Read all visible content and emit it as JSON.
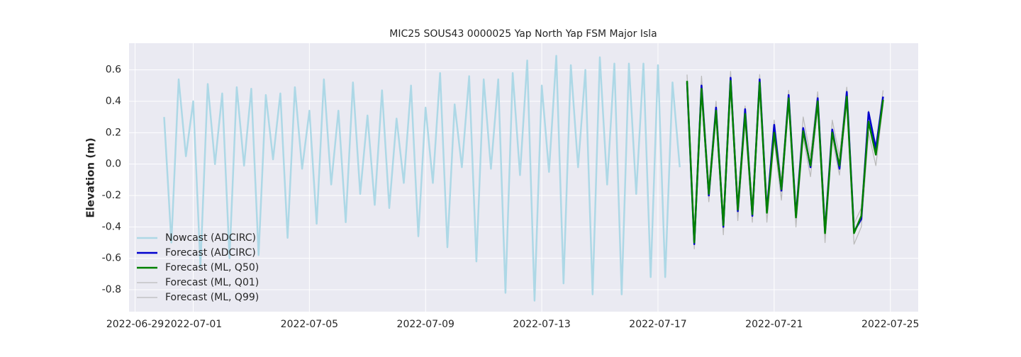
{
  "chart_data": {
    "type": "line",
    "title": "MIC25 SOUS43 0000025 Yap North Yap FSM Major Isla",
    "ylabel": "Elevation (m)",
    "xlim": [
      "2022-06-28 19:00",
      "2022-07-25 23:00"
    ],
    "xticks": [
      "2022-06-29",
      "2022-07-01",
      "2022-07-05",
      "2022-07-09",
      "2022-07-13",
      "2022-07-17",
      "2022-07-21",
      "2022-07-25"
    ],
    "ylim": [
      -0.94,
      0.77
    ],
    "yticks": [
      -0.8,
      -0.6,
      -0.4,
      -0.2,
      {
        "value": 0,
        "label": "0.0"
      },
      0.2,
      0.4,
      0.6
    ],
    "grid": true,
    "legend": "lower left",
    "series": [
      {
        "name": "Nowcast (ADCIRC)",
        "color": "#add8e6",
        "x": [
          "2022-06-30 00:00",
          "2022-06-30 06:00",
          "2022-06-30 12:00",
          "2022-06-30 18:00",
          "2022-07-01 00:00",
          "2022-07-01 06:00",
          "2022-07-01 12:00",
          "2022-07-01 18:00",
          "2022-07-02 00:00",
          "2022-07-02 06:00",
          "2022-07-02 12:00",
          "2022-07-02 18:00",
          "2022-07-03 00:00",
          "2022-07-03 06:00",
          "2022-07-03 12:00",
          "2022-07-03 18:00",
          "2022-07-04 00:00",
          "2022-07-04 06:00",
          "2022-07-04 12:00",
          "2022-07-04 18:00",
          "2022-07-05 00:00",
          "2022-07-05 06:00",
          "2022-07-05 12:00",
          "2022-07-05 18:00",
          "2022-07-06 00:00",
          "2022-07-06 06:00",
          "2022-07-06 12:00",
          "2022-07-06 18:00",
          "2022-07-07 00:00",
          "2022-07-07 06:00",
          "2022-07-07 12:00",
          "2022-07-07 18:00",
          "2022-07-08 00:00",
          "2022-07-08 06:00",
          "2022-07-08 12:00",
          "2022-07-08 18:00",
          "2022-07-09 00:00",
          "2022-07-09 06:00",
          "2022-07-09 12:00",
          "2022-07-09 18:00",
          "2022-07-10 00:00",
          "2022-07-10 06:00",
          "2022-07-10 12:00",
          "2022-07-10 18:00",
          "2022-07-11 00:00",
          "2022-07-11 06:00",
          "2022-07-11 12:00",
          "2022-07-11 18:00",
          "2022-07-12 00:00",
          "2022-07-12 06:00",
          "2022-07-12 12:00",
          "2022-07-12 18:00",
          "2022-07-13 00:00",
          "2022-07-13 06:00",
          "2022-07-13 12:00",
          "2022-07-13 18:00",
          "2022-07-14 00:00",
          "2022-07-14 06:00",
          "2022-07-14 12:00",
          "2022-07-14 18:00",
          "2022-07-15 00:00",
          "2022-07-15 06:00",
          "2022-07-15 12:00",
          "2022-07-15 18:00",
          "2022-07-16 00:00",
          "2022-07-16 06:00",
          "2022-07-16 12:00",
          "2022-07-16 18:00",
          "2022-07-17 00:00",
          "2022-07-17 06:00",
          "2022-07-17 12:00",
          "2022-07-17 18:00"
        ],
        "values": [
          0.3,
          -0.5,
          0.54,
          0.05,
          0.4,
          -0.65,
          0.51,
          0.0,
          0.45,
          -0.6,
          0.49,
          -0.01,
          0.48,
          -0.58,
          0.44,
          0.03,
          0.45,
          -0.47,
          0.49,
          -0.03,
          0.34,
          -0.38,
          0.54,
          -0.13,
          0.34,
          -0.37,
          0.52,
          -0.19,
          0.31,
          -0.26,
          0.47,
          -0.28,
          0.29,
          -0.12,
          0.5,
          -0.46,
          0.36,
          -0.12,
          0.58,
          -0.53,
          0.38,
          -0.02,
          0.56,
          -0.62,
          0.54,
          -0.03,
          0.54,
          -0.82,
          0.58,
          -0.07,
          0.66,
          -0.87,
          0.5,
          -0.05,
          0.69,
          -0.76,
          0.63,
          -0.02,
          0.6,
          -0.83,
          0.68,
          -0.13,
          0.64,
          -0.83,
          0.64,
          -0.19,
          0.64,
          -0.72,
          0.63,
          -0.72,
          0.52,
          -0.02
        ]
      },
      {
        "name": "Forecast (ADCIRC)",
        "color": "#0000cd",
        "x": [
          "2022-07-18 00:00",
          "2022-07-18 06:00",
          "2022-07-18 12:00",
          "2022-07-18 18:00",
          "2022-07-19 00:00",
          "2022-07-19 06:00",
          "2022-07-19 12:00",
          "2022-07-19 18:00",
          "2022-07-20 00:00",
          "2022-07-20 06:00",
          "2022-07-20 12:00",
          "2022-07-20 18:00",
          "2022-07-21 00:00",
          "2022-07-21 06:00",
          "2022-07-21 12:00",
          "2022-07-21 18:00",
          "2022-07-22 00:00",
          "2022-07-22 06:00",
          "2022-07-22 12:00",
          "2022-07-22 18:00",
          "2022-07-23 00:00",
          "2022-07-23 06:00",
          "2022-07-23 12:00",
          "2022-07-23 18:00",
          "2022-07-24 00:00",
          "2022-07-24 06:00",
          "2022-07-24 12:00",
          "2022-07-24 18:00"
        ],
        "values": [
          0.52,
          -0.51,
          0.5,
          -0.2,
          0.36,
          -0.4,
          0.55,
          -0.3,
          0.35,
          -0.33,
          0.54,
          -0.3,
          0.25,
          -0.17,
          0.44,
          -0.33,
          0.23,
          -0.02,
          0.42,
          -0.43,
          0.22,
          -0.03,
          0.46,
          -0.43,
          -0.35,
          0.33,
          0.1,
          0.43
        ]
      },
      {
        "name": "Forecast (ML, Q50)",
        "color": "#008000",
        "x": [
          "2022-07-18 00:00",
          "2022-07-18 06:00",
          "2022-07-18 12:00",
          "2022-07-18 18:00",
          "2022-07-19 00:00",
          "2022-07-19 06:00",
          "2022-07-19 12:00",
          "2022-07-19 18:00",
          "2022-07-20 00:00",
          "2022-07-20 06:00",
          "2022-07-20 12:00",
          "2022-07-20 18:00",
          "2022-07-21 00:00",
          "2022-07-21 06:00",
          "2022-07-21 12:00",
          "2022-07-21 18:00",
          "2022-07-22 00:00",
          "2022-07-22 06:00",
          "2022-07-22 12:00",
          "2022-07-22 18:00",
          "2022-07-23 00:00",
          "2022-07-23 06:00",
          "2022-07-23 12:00",
          "2022-07-23 18:00",
          "2022-07-24 00:00",
          "2022-07-24 06:00",
          "2022-07-24 12:00",
          "2022-07-24 18:00"
        ],
        "values": [
          0.53,
          -0.5,
          0.48,
          -0.19,
          0.34,
          -0.39,
          0.53,
          -0.29,
          0.32,
          -0.32,
          0.52,
          -0.31,
          0.2,
          -0.16,
          0.42,
          -0.34,
          0.21,
          -0.01,
          0.4,
          -0.44,
          0.2,
          -0.01,
          0.43,
          -0.44,
          -0.33,
          0.27,
          0.06,
          0.41
        ]
      },
      {
        "name": "Forecast (ML, Q01)",
        "color": "#bbbbbb",
        "x": [
          "2022-07-18 00:00",
          "2022-07-18 06:00",
          "2022-07-18 12:00",
          "2022-07-18 18:00",
          "2022-07-19 00:00",
          "2022-07-19 06:00",
          "2022-07-19 12:00",
          "2022-07-19 18:00",
          "2022-07-20 00:00",
          "2022-07-20 06:00",
          "2022-07-20 12:00",
          "2022-07-20 18:00",
          "2022-07-21 00:00",
          "2022-07-21 06:00",
          "2022-07-21 12:00",
          "2022-07-21 18:00",
          "2022-07-22 00:00",
          "2022-07-22 06:00",
          "2022-07-22 12:00",
          "2022-07-22 18:00",
          "2022-07-23 00:00",
          "2022-07-23 06:00",
          "2022-07-23 12:00",
          "2022-07-23 18:00",
          "2022-07-24 00:00",
          "2022-07-24 06:00",
          "2022-07-24 12:00",
          "2022-07-24 18:00"
        ],
        "values": [
          0.5,
          -0.54,
          0.45,
          -0.24,
          0.3,
          -0.45,
          0.5,
          -0.36,
          0.27,
          -0.37,
          0.49,
          -0.37,
          0.15,
          -0.23,
          0.38,
          -0.4,
          0.17,
          -0.08,
          0.36,
          -0.5,
          0.16,
          -0.07,
          0.4,
          -0.51,
          -0.4,
          0.2,
          -0.01,
          0.38
        ]
      },
      {
        "name": "Forecast (ML, Q99)",
        "color": "#bbbbbb",
        "x": [
          "2022-07-18 00:00",
          "2022-07-18 06:00",
          "2022-07-18 12:00",
          "2022-07-18 18:00",
          "2022-07-19 00:00",
          "2022-07-19 06:00",
          "2022-07-19 12:00",
          "2022-07-19 18:00",
          "2022-07-20 00:00",
          "2022-07-20 06:00",
          "2022-07-20 12:00",
          "2022-07-20 18:00",
          "2022-07-21 00:00",
          "2022-07-21 06:00",
          "2022-07-21 12:00",
          "2022-07-21 18:00",
          "2022-07-22 00:00",
          "2022-07-22 06:00",
          "2022-07-22 12:00",
          "2022-07-22 18:00",
          "2022-07-23 00:00",
          "2022-07-23 06:00",
          "2022-07-23 12:00",
          "2022-07-23 18:00",
          "2022-07-24 00:00",
          "2022-07-24 06:00",
          "2022-07-24 12:00",
          "2022-07-24 18:00"
        ],
        "values": [
          0.57,
          -0.47,
          0.56,
          -0.14,
          0.4,
          -0.34,
          0.59,
          -0.24,
          0.37,
          -0.27,
          0.57,
          -0.26,
          0.28,
          -0.11,
          0.47,
          -0.29,
          0.3,
          0.05,
          0.46,
          -0.39,
          0.28,
          0.05,
          0.49,
          -0.38,
          -0.28,
          0.34,
          0.12,
          0.47
        ]
      }
    ]
  }
}
